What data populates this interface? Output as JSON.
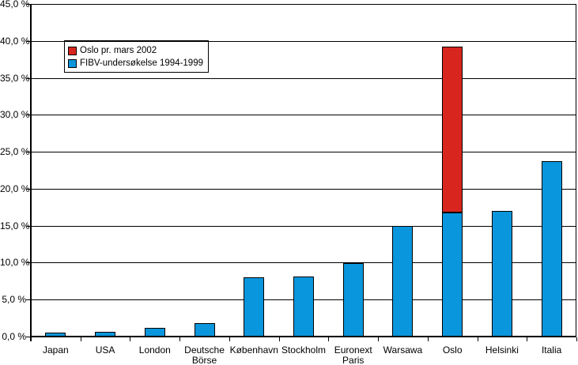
{
  "figure": {
    "background_color": "#ffffff",
    "gridline_color": "#000000",
    "axis_color": "#000000"
  },
  "legend": {
    "entries": [
      {
        "label": "Oslo pr. mars 2002",
        "color": "#d8261e",
        "swatch": "red-square"
      },
      {
        "label": "FIBV-undersøkelse 1994-1999",
        "color": "#0a96dc",
        "swatch": "blue-square"
      }
    ],
    "position": "top-left-inside"
  },
  "chart_data": {
    "type": "bar",
    "stacked": true,
    "title": "",
    "xlabel": "",
    "ylabel": "",
    "grid": true,
    "ylim": [
      0,
      45
    ],
    "y_tick_step": 5,
    "y_tick_labels_top_to_bottom": [
      "45,0 %",
      "40,0 %",
      "35,0 %",
      "30,0 %",
      "25,0 %",
      "20,0 %",
      "15,0 %",
      "10,0 %",
      "5,0 %",
      "0,0 %"
    ],
    "categories": [
      "Japan",
      "USA",
      "London",
      "Deutsche Börse",
      "København",
      "Stockholm",
      "Euronext Paris",
      "Warsawa",
      "Oslo",
      "Helsinki",
      "Italia"
    ],
    "category_label_lines": [
      [
        "Japan"
      ],
      [
        "USA"
      ],
      [
        "London"
      ],
      [
        "Deutsche",
        "Börse"
      ],
      [
        "København"
      ],
      [
        "Stockholm"
      ],
      [
        "Euronext",
        "Paris"
      ],
      [
        "Warsawa"
      ],
      [
        "Oslo"
      ],
      [
        "Helsinki"
      ],
      [
        "Italia"
      ]
    ],
    "series": [
      {
        "name": "FIBV-undersøkelse 1994-1999",
        "color": "#0a96dc",
        "values": [
          0.5,
          0.6,
          1.2,
          1.8,
          8.0,
          8.1,
          9.9,
          15.0,
          16.8,
          17.0,
          23.7
        ]
      },
      {
        "name": "Oslo pr. mars 2002",
        "color": "#d8261e",
        "values": [
          0,
          0,
          0,
          0,
          0,
          0,
          0,
          0,
          22.4,
          0,
          0
        ]
      }
    ],
    "oslo_total_pr_mars_2002_pct": 39.2,
    "legend_position": "top-left-inside"
  }
}
